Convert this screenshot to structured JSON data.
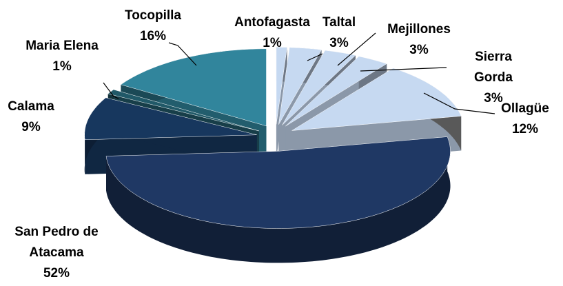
{
  "chart_data": {
    "type": "pie",
    "categories": [
      "Antofagasta",
      "Taltal",
      "Mejillones",
      "Sierra Gorda",
      "Ollagüe",
      "San Pedro de Atacama",
      "Calama",
      "Maria Elena",
      "Tocopilla"
    ],
    "values": [
      1,
      3,
      3,
      3,
      12,
      52,
      9,
      1,
      16
    ],
    "value_labels": [
      "1%",
      "3%",
      "3%",
      "3%",
      "12%",
      "52%",
      "9%",
      "1%",
      "16%"
    ],
    "colors": [
      "#c6d9f1",
      "#c6d9f1",
      "#c6d9f1",
      "#c6d9f1",
      "#c6d9f1",
      "#1f3864",
      "#17375e",
      "#215968",
      "#31859c"
    ]
  }
}
